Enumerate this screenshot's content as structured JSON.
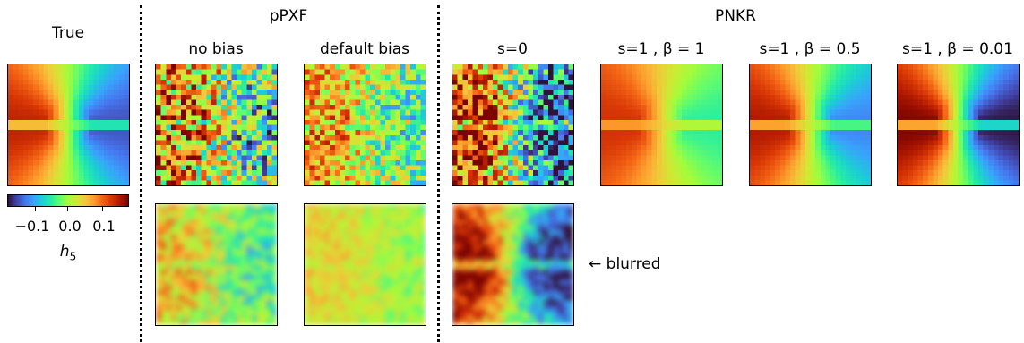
{
  "true_column": {
    "title": "True"
  },
  "ppxf": {
    "group_title": "pPXF",
    "columns": [
      "no bias",
      "default bias"
    ]
  },
  "pnkr": {
    "group_title": "PNKR",
    "columns": [
      "s=0",
      "s=1 , β = 1",
      "s=1 , β = 0.5",
      "s=1 , β = 0.01"
    ]
  },
  "blurred_note": "← blurred",
  "colorbar": {
    "ticks": [
      "−0.1",
      "0.0",
      "0.1"
    ],
    "label_main": "h",
    "label_sub": "5",
    "colormap": "turbo",
    "range": [
      -0.15,
      0.15
    ]
  }
}
